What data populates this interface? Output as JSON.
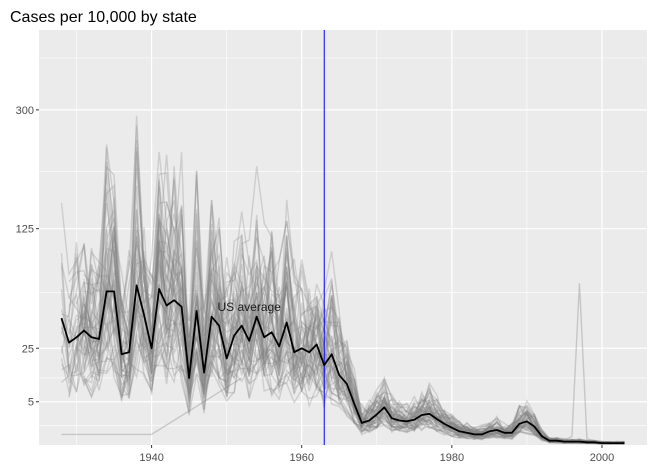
{
  "chart_data": {
    "type": "line",
    "title": "Cases per 10,000 by state",
    "xlabel": "",
    "ylabel": "",
    "y_scale": "sqrt",
    "xlim": [
      1925,
      2006
    ],
    "ylim": [
      0,
      460
    ],
    "x_ticks": [
      1940,
      1960,
      1980,
      2000
    ],
    "y_ticks": [
      5,
      25,
      125,
      300
    ],
    "grid": true,
    "legend": "none",
    "vaccine_year": 1963,
    "annotation": {
      "label": "US average",
      "x": 1953,
      "y": 48
    },
    "colors": {
      "panel": "#ebebeb",
      "grid": "#ffffff",
      "states": "#808080",
      "average": "#000000",
      "vline": "#0000ff"
    },
    "series": [
      {
        "name": "US average",
        "points": [
          [
            1928,
            43
          ],
          [
            1929,
            28
          ],
          [
            1930,
            31
          ],
          [
            1931,
            35
          ],
          [
            1932,
            31
          ],
          [
            1933,
            30
          ],
          [
            1934,
            63
          ],
          [
            1935,
            63
          ],
          [
            1936,
            22
          ],
          [
            1937,
            23
          ],
          [
            1938,
            68
          ],
          [
            1939,
            45
          ],
          [
            1940,
            25
          ],
          [
            1941,
            65
          ],
          [
            1942,
            52
          ],
          [
            1943,
            56
          ],
          [
            1944,
            51
          ],
          [
            1945,
            12
          ],
          [
            1946,
            48
          ],
          [
            1947,
            14
          ],
          [
            1948,
            44
          ],
          [
            1949,
            38
          ],
          [
            1950,
            20
          ],
          [
            1951,
            32
          ],
          [
            1952,
            38
          ],
          [
            1953,
            29
          ],
          [
            1954,
            44
          ],
          [
            1955,
            31
          ],
          [
            1956,
            34
          ],
          [
            1957,
            26
          ],
          [
            1958,
            40
          ],
          [
            1959,
            23
          ],
          [
            1960,
            25
          ],
          [
            1961,
            23
          ],
          [
            1962,
            27
          ],
          [
            1963,
            17
          ],
          [
            1964,
            22
          ],
          [
            1965,
            13
          ],
          [
            1966,
            10
          ],
          [
            1967,
            4.5
          ],
          [
            1968,
            1.3
          ],
          [
            1969,
            1.6
          ],
          [
            1970,
            2.5
          ],
          [
            1971,
            3.8
          ],
          [
            1972,
            1.9
          ],
          [
            1973,
            1.6
          ],
          [
            1974,
            1.5
          ],
          [
            1975,
            1.7
          ],
          [
            1976,
            2.4
          ],
          [
            1977,
            2.6
          ],
          [
            1978,
            1.8
          ],
          [
            1979,
            1.2
          ],
          [
            1980,
            0.8
          ],
          [
            1981,
            0.5
          ],
          [
            1982,
            0.4
          ],
          [
            1983,
            0.3
          ],
          [
            1984,
            0.3
          ],
          [
            1985,
            0.5
          ],
          [
            1986,
            0.6
          ],
          [
            1987,
            0.4
          ],
          [
            1988,
            0.4
          ],
          [
            1989,
            1.2
          ],
          [
            1990,
            1.5
          ],
          [
            1991,
            0.9
          ],
          [
            1992,
            0.2
          ],
          [
            1993,
            0.05
          ],
          [
            1994,
            0.05
          ],
          [
            1995,
            0.03
          ],
          [
            1996,
            0.03
          ],
          [
            1997,
            0.03
          ],
          [
            1998,
            0.02
          ],
          [
            1999,
            0.02
          ],
          [
            2000,
            0.01
          ],
          [
            2001,
            0.01
          ],
          [
            2002,
            0.01
          ],
          [
            2003,
            0.01
          ]
        ]
      }
    ]
  }
}
